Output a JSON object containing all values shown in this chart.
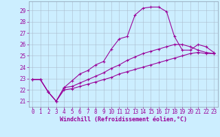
{
  "xlabel": "Windchill (Refroidissement éolien,°C)",
  "background_color": "#cceeff",
  "line_color": "#990099",
  "grid_color": "#aabbcc",
  "xlim": [
    -0.5,
    23.5
  ],
  "ylim": [
    20.5,
    29.8
  ],
  "yticks": [
    21,
    22,
    23,
    24,
    25,
    26,
    27,
    28,
    29
  ],
  "xticks": [
    0,
    1,
    2,
    3,
    4,
    5,
    6,
    7,
    8,
    9,
    10,
    11,
    12,
    13,
    14,
    15,
    16,
    17,
    18,
    19,
    20,
    21,
    22,
    23
  ],
  "series": [
    [
      22.9,
      22.9,
      21.8,
      21.0,
      22.2,
      22.8,
      23.4,
      23.7,
      24.2,
      24.5,
      25.6,
      26.5,
      26.7,
      28.6,
      29.2,
      29.3,
      29.3,
      28.9,
      26.7,
      25.5,
      25.5,
      26.0,
      25.8,
      25.3
    ],
    [
      22.9,
      22.9,
      21.8,
      21.0,
      22.2,
      22.3,
      22.6,
      22.9,
      23.2,
      23.5,
      23.9,
      24.2,
      24.6,
      24.9,
      25.2,
      25.4,
      25.6,
      25.8,
      26.0,
      26.0,
      25.8,
      25.5,
      25.3,
      25.2
    ],
    [
      22.9,
      22.9,
      21.8,
      21.0,
      22.0,
      22.1,
      22.3,
      22.5,
      22.7,
      22.9,
      23.1,
      23.4,
      23.6,
      23.8,
      24.0,
      24.2,
      24.4,
      24.6,
      24.8,
      25.0,
      25.2,
      25.3,
      25.2,
      25.2
    ]
  ],
  "xlabel_fontsize": 6,
  "tick_fontsize": 5.5,
  "marker_size": 3,
  "linewidth": 0.8
}
